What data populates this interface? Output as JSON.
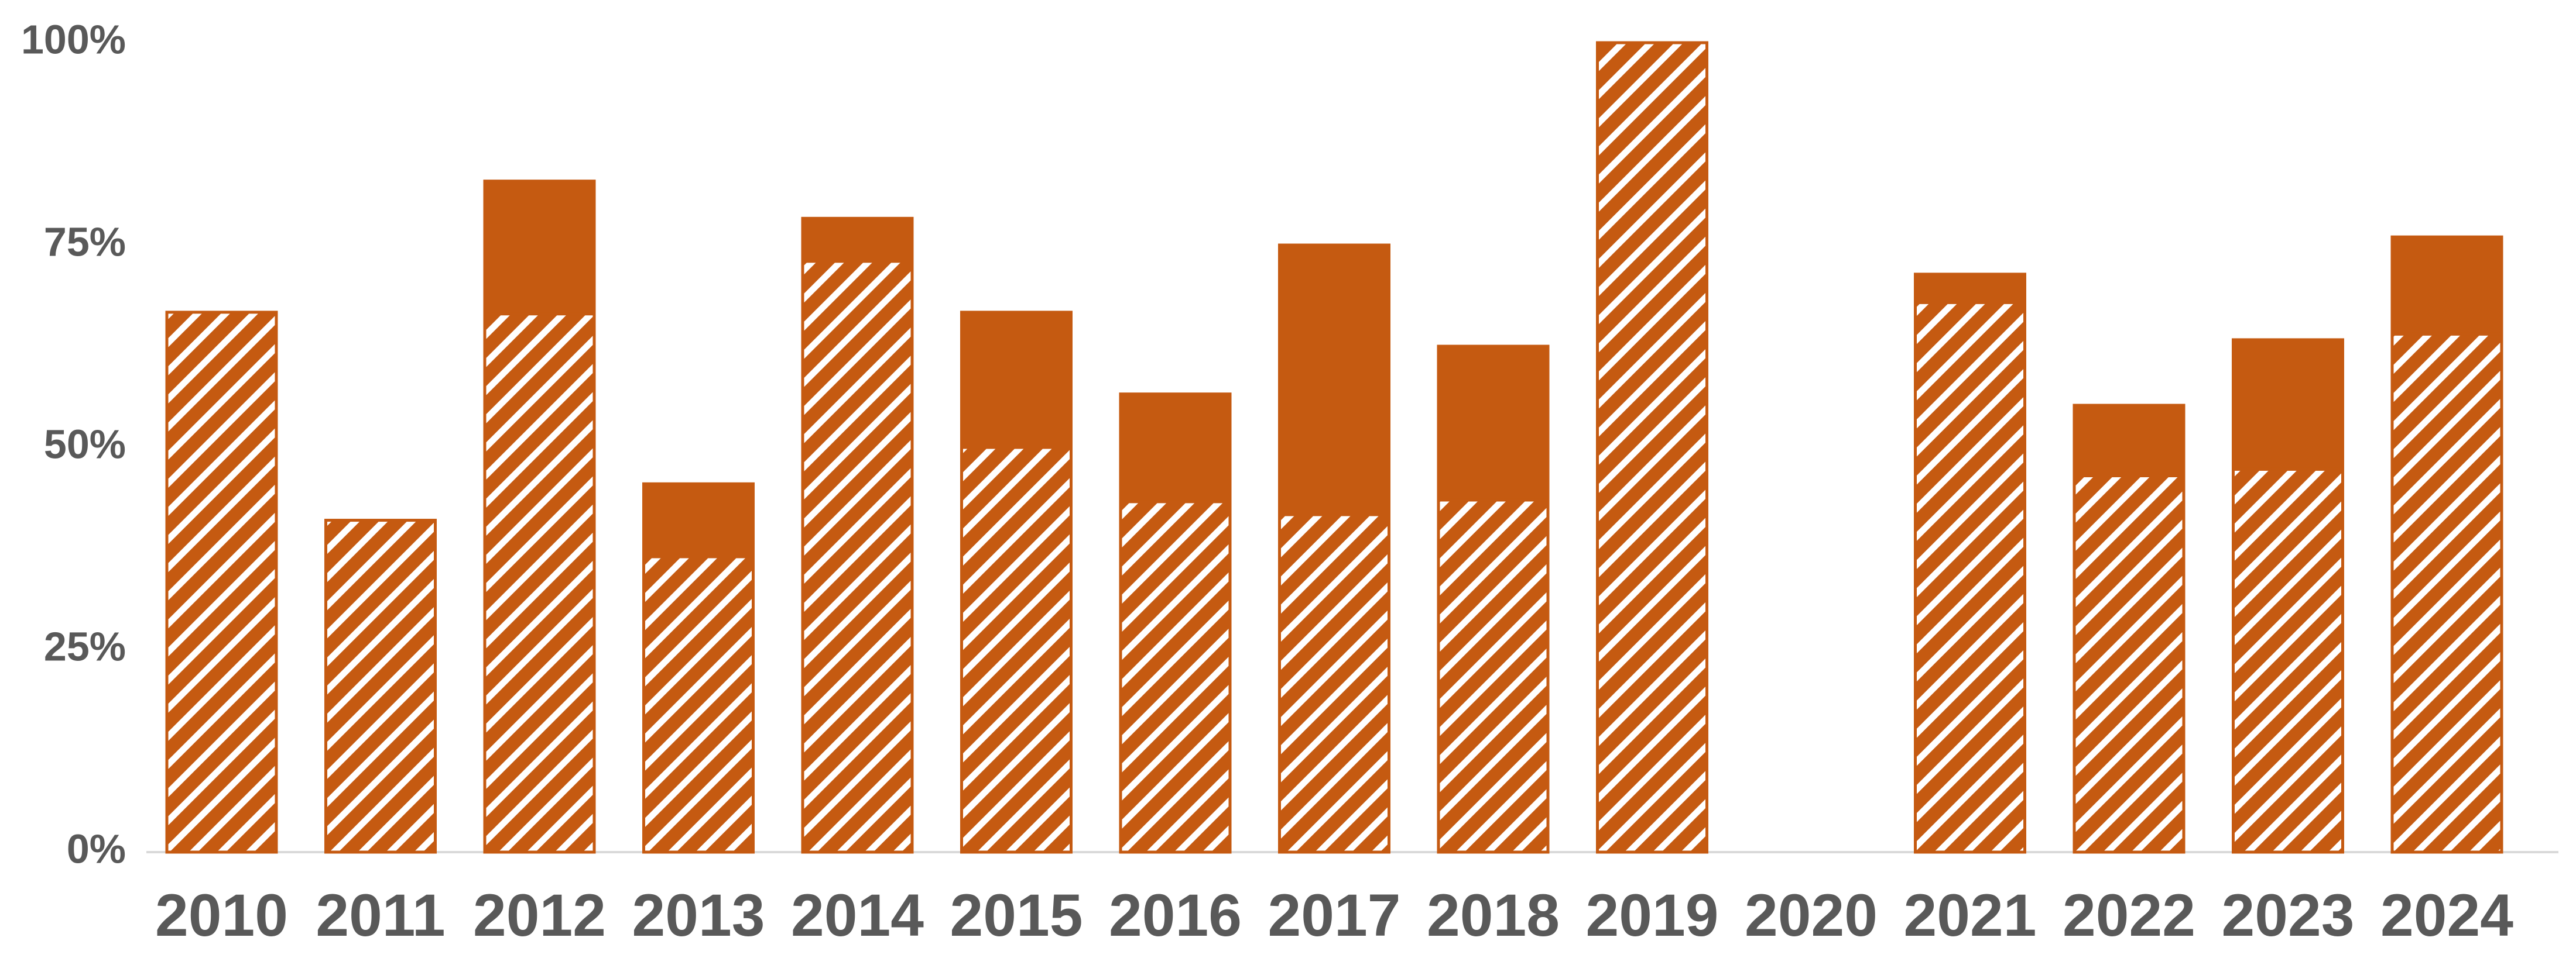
{
  "chart_data": {
    "type": "bar",
    "stacked": true,
    "categories": [
      "2010",
      "2011",
      "2012",
      "2013",
      "2014",
      "2015",
      "2016",
      "2017",
      "2018",
      "2019",
      "2020",
      "2021",
      "2022",
      "2023",
      "2024"
    ],
    "series": [
      {
        "pattern": "hatched",
        "color": "#C55A11",
        "values": [
          66.7,
          41.0,
          66.5,
          36.5,
          73.0,
          50.0,
          43.3,
          41.7,
          43.5,
          100.0,
          0,
          67.9,
          46.5,
          47.3,
          64.0
        ]
      },
      {
        "pattern": "solid",
        "color": "#C55A11",
        "values": [
          0,
          0,
          16.4,
          9.0,
          5.3,
          16.7,
          13.3,
          33.3,
          19.0,
          0,
          0,
          3.5,
          8.7,
          16.0,
          12.0
        ]
      }
    ],
    "title": "",
    "xlabel": "",
    "ylabel": "",
    "ylim": [
      0,
      100
    ],
    "yticks": [
      "0%",
      "25%",
      "50%",
      "75%",
      "100%"
    ],
    "ytick_values": [
      0,
      25,
      50,
      75,
      100
    ],
    "grid": false,
    "legend": "none"
  }
}
